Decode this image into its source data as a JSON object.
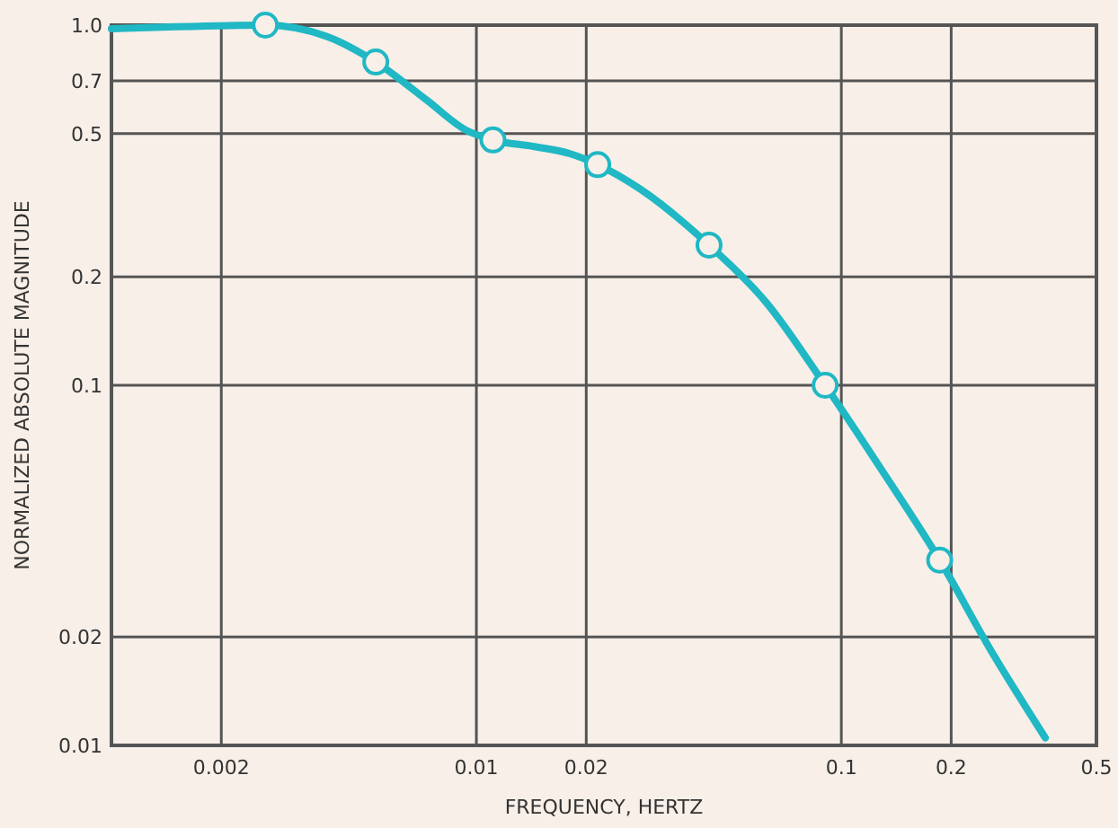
{
  "chart_data": {
    "type": "line",
    "xlabel": "FREQUENCY, HERTZ",
    "ylabel": "NORMALIZED ABSOLUTE MAGNITUDE",
    "log": "xy",
    "grid": true,
    "xlim": [
      0.001,
      0.5
    ],
    "ylim": [
      0.01,
      1.0
    ],
    "xticks": [
      0.002,
      0.01,
      0.02,
      0.1,
      0.2,
      0.5
    ],
    "yticks": [
      0.01,
      0.02,
      0.1,
      0.2,
      0.5,
      0.7,
      {
        "value": 1.0,
        "label": "1.0"
      }
    ],
    "series": [
      {
        "color": "#1fb8c4",
        "marker": "none",
        "x": [
          0.001,
          0.0015,
          0.00264,
          0.0039,
          0.0053,
          0.0073,
          0.0094,
          0.0111,
          0.0144,
          0.018,
          0.0215,
          0.0282,
          0.0434,
          0.0622,
          0.0903,
          0.13,
          0.186,
          0.255,
          0.362
        ],
        "values": [
          0.977,
          0.99,
          1.0,
          0.93,
          0.79,
          0.62,
          0.51,
          0.48,
          0.46,
          0.44,
          0.41,
          0.35,
          0.245,
          0.17,
          0.1,
          0.0575,
          0.0327,
          0.0186,
          0.0105
        ]
      },
      {
        "type": "scatter",
        "color": "#1fb8c4",
        "marker": "circle",
        "x": [
          0.00264,
          0.0053,
          0.0111,
          0.0215,
          0.0434,
          0.0903,
          0.186
        ],
        "values": [
          1.0,
          0.79,
          0.48,
          0.41,
          0.245,
          0.1,
          0.0327
        ]
      }
    ]
  }
}
